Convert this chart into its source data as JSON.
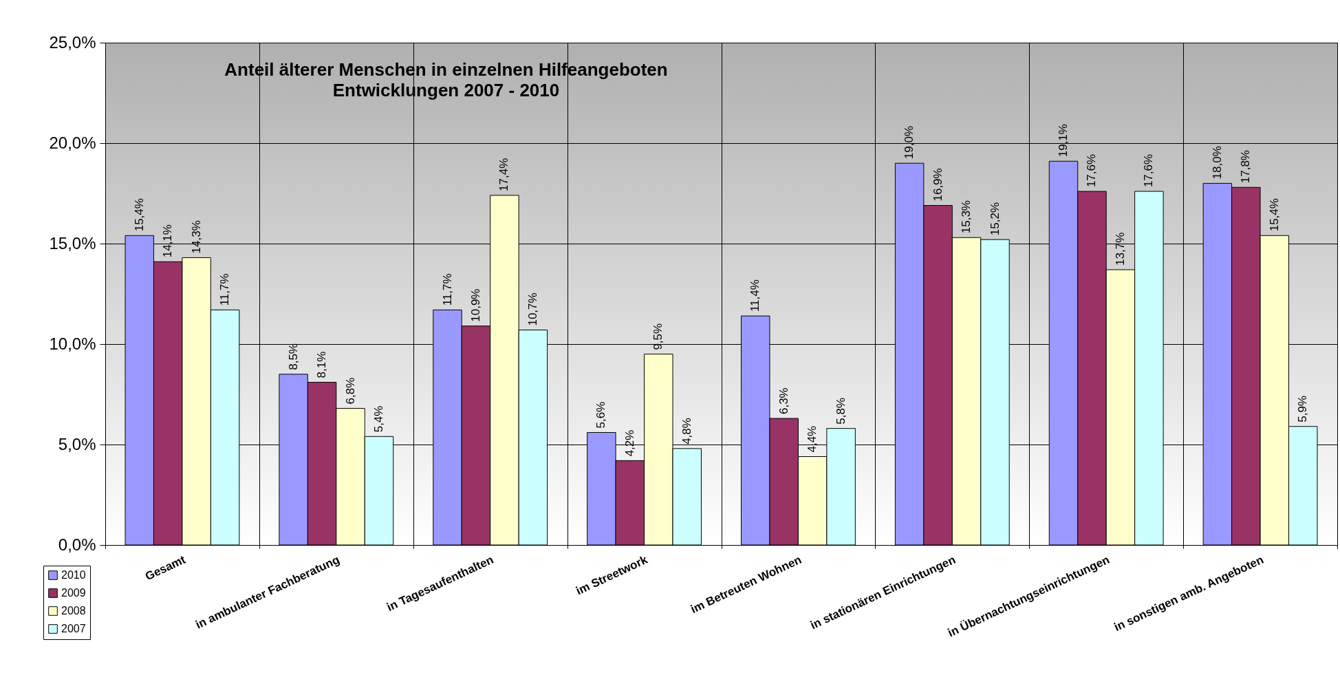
{
  "chart_data": {
    "type": "bar",
    "title": "Anteil älterer Menschen in einzelnen Hilfeangeboten",
    "subtitle": "Entwicklungen 2007 - 2010",
    "categories": [
      "Gesamt",
      "in ambulanter Fachberatung",
      "in Tagesaufenthalten",
      "im Streetwork",
      "im Betreuten Wohnen",
      "in stationären Einrichtungen",
      "in Übernachtungseinrichtungen",
      "in sonstigen amb. Angeboten"
    ],
    "series": [
      {
        "name": "2010",
        "color": "#9999ff",
        "values": [
          15.4,
          8.5,
          11.7,
          5.6,
          11.4,
          19.0,
          19.1,
          18.0
        ],
        "value_labels": [
          "15,4%",
          "8,5%",
          "11,7%",
          "5,6%",
          "11,4%",
          "19,0%",
          "19,1%",
          "18,0%"
        ]
      },
      {
        "name": "2009",
        "color": "#993366",
        "values": [
          14.1,
          8.1,
          10.9,
          4.2,
          6.3,
          16.9,
          17.6,
          17.8
        ],
        "value_labels": [
          "14,1%",
          "8,1%",
          "10,9%",
          "4,2%",
          "6,3%",
          "16,9%",
          "17,6%",
          "17,8%"
        ]
      },
      {
        "name": "2008",
        "color": "#ffffcc",
        "values": [
          14.3,
          6.8,
          17.4,
          9.5,
          4.4,
          15.3,
          13.7,
          15.4
        ],
        "value_labels": [
          "14,3%",
          "6,8%",
          "17,4%",
          "9,5%",
          "4,4%",
          "15,3%",
          "13,7%",
          "15,4%"
        ]
      },
      {
        "name": "2007",
        "color": "#ccffff",
        "values": [
          11.7,
          5.4,
          10.7,
          4.8,
          5.8,
          15.2,
          17.6,
          5.9
        ],
        "value_labels": [
          "11,7%",
          "5,4%",
          "10,7%",
          "4,8%",
          "5,8%",
          "15,2%",
          "17,6%",
          "5,9%"
        ]
      }
    ],
    "ylim": [
      0,
      25
    ],
    "yticks": [
      {
        "value": 0,
        "label": "0,0%"
      },
      {
        "value": 5,
        "label": "5,0%"
      },
      {
        "value": 10,
        "label": "10,0%"
      },
      {
        "value": 15,
        "label": "15,0%"
      },
      {
        "value": 20,
        "label": "20,0%"
      },
      {
        "value": 25,
        "label": "25,0%"
      }
    ],
    "grid": true,
    "legend": "bottom left"
  }
}
